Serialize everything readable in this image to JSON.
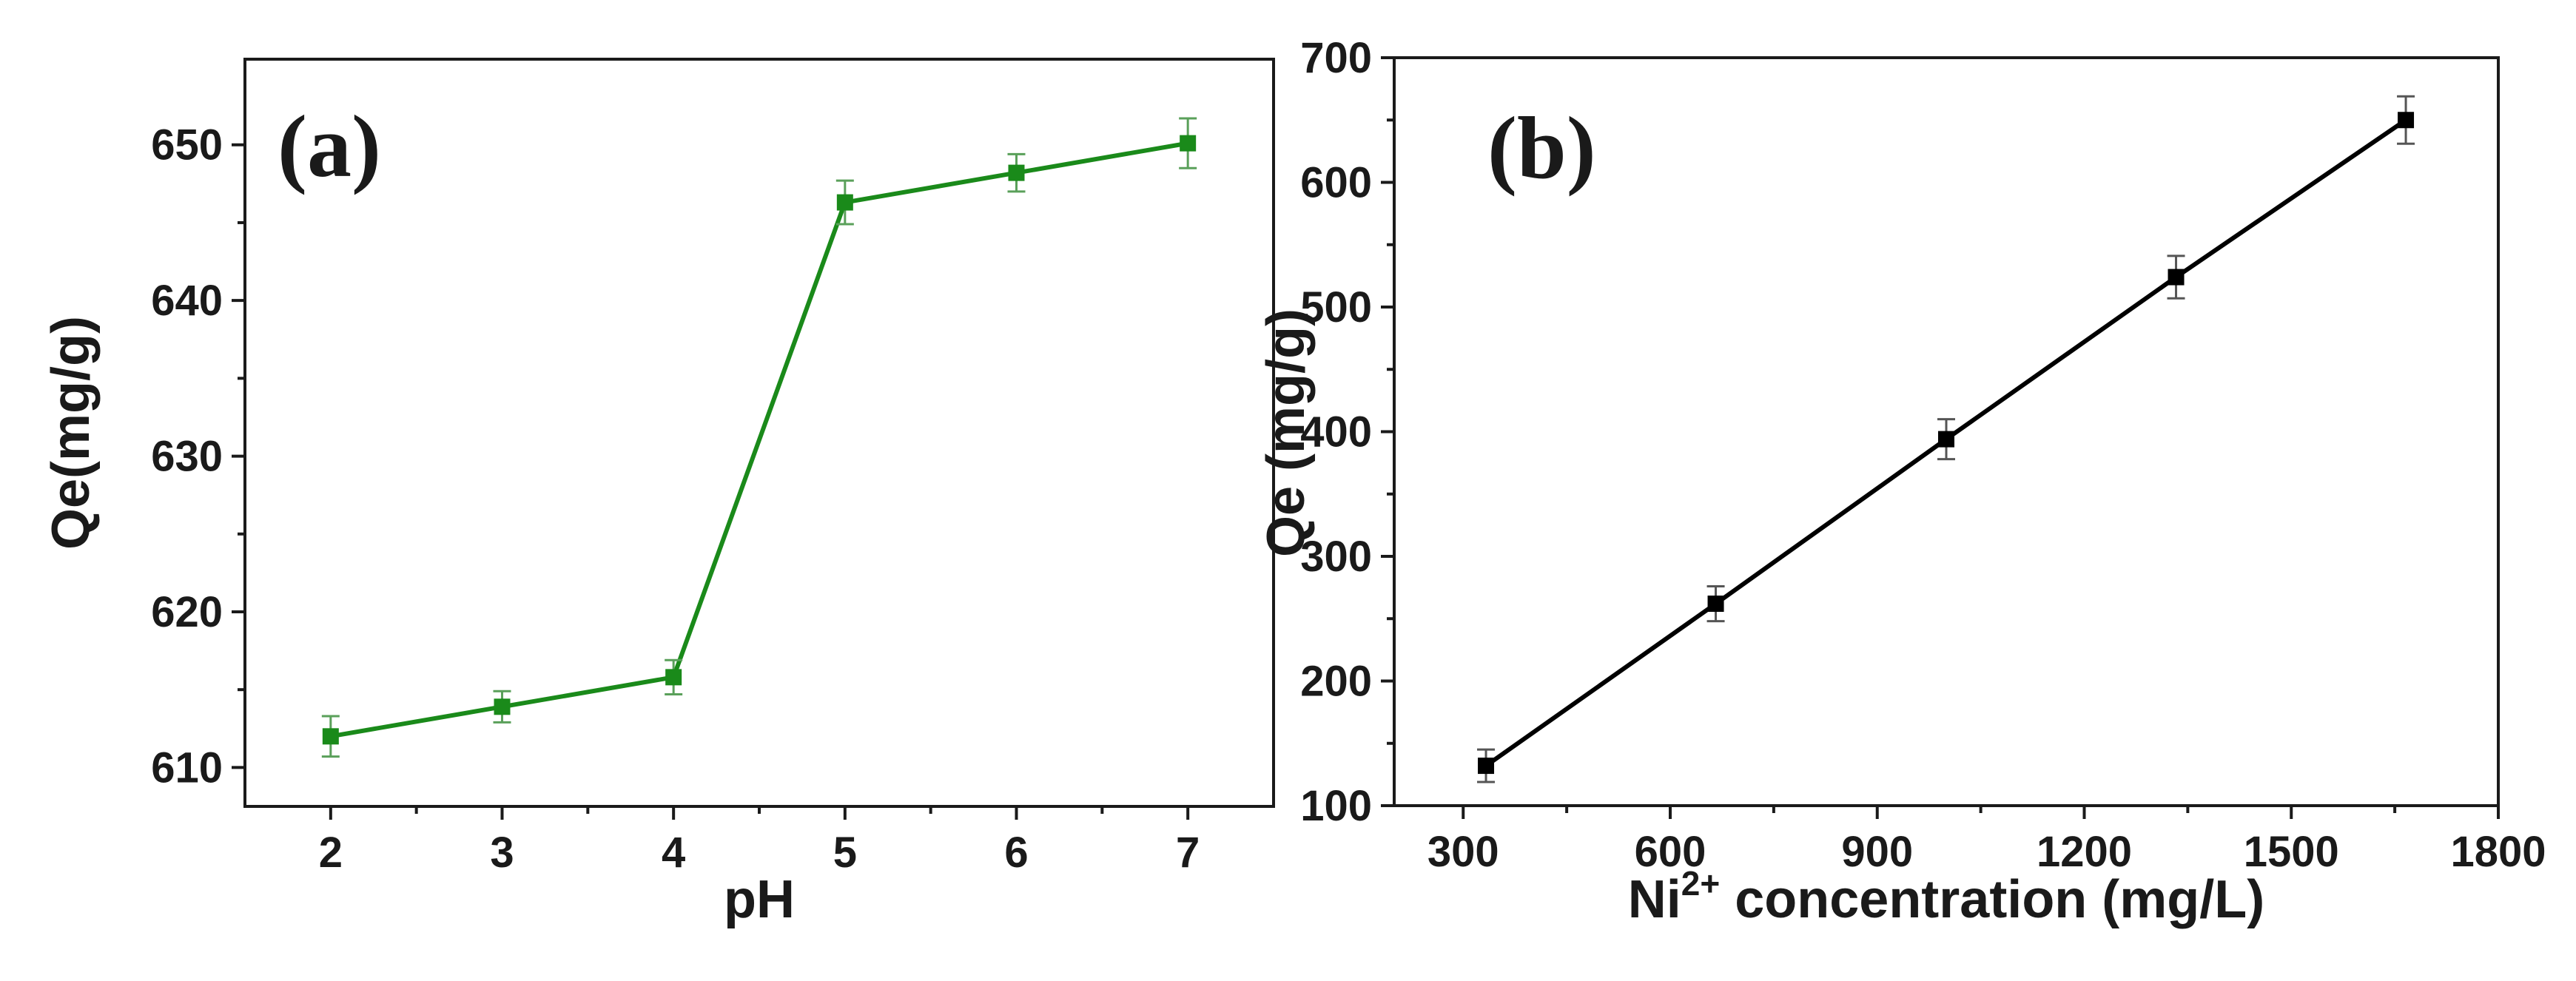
{
  "chart_data": [
    {
      "type": "line",
      "panel_label": "(a)",
      "xlabel": "pH",
      "ylabel": "Qe(mg/g)",
      "x": [
        2,
        3,
        4,
        5,
        6,
        7
      ],
      "y": [
        612.0,
        613.9,
        615.8,
        646.3,
        648.2,
        650.1
      ],
      "err": [
        1.3,
        1.0,
        1.1,
        1.4,
        1.2,
        1.6
      ],
      "xlim": [
        1.5,
        7.5
      ],
      "ylim": [
        607.5,
        655.5
      ],
      "xticks": [
        2,
        3,
        4,
        5,
        6,
        7
      ],
      "yticks": [
        610,
        620,
        630,
        640,
        650
      ],
      "color": "#1a8a1a",
      "marker": "square"
    },
    {
      "type": "line",
      "panel_label": "(b)",
      "xlabel_main": "Ni",
      "xlabel_sup": "2+",
      "xlabel_rest": " concentration (mg/L)",
      "ylabel": "Qe (mg/g)",
      "x": [
        333,
        666,
        1000,
        1333,
        1666
      ],
      "y": [
        132,
        262,
        394,
        524,
        650
      ],
      "err": [
        13,
        14,
        16,
        17,
        19
      ],
      "xlim": [
        200,
        1800
      ],
      "ylim": [
        100,
        700
      ],
      "xticks": [
        300,
        600,
        900,
        1200,
        1500,
        1800
      ],
      "yticks": [
        100,
        200,
        300,
        400,
        500,
        600,
        700
      ],
      "color": "#000000",
      "marker": "square"
    }
  ]
}
